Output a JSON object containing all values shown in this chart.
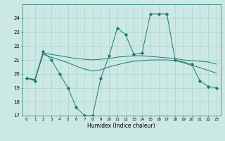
{
  "xlabel": "Humidex (Indice chaleur)",
  "x": [
    0,
    1,
    2,
    3,
    4,
    5,
    6,
    7,
    8,
    9,
    10,
    11,
    12,
    13,
    14,
    15,
    16,
    17,
    18,
    19,
    20,
    21,
    22,
    23
  ],
  "series1": [
    19.7,
    19.5,
    21.6,
    21.0,
    20.0,
    19.0,
    17.6,
    17.0,
    17.0,
    19.7,
    21.3,
    23.3,
    22.8,
    21.4,
    21.5,
    24.3,
    24.3,
    24.3,
    21.0,
    null,
    20.7,
    19.5,
    19.1,
    19.0
  ],
  "series3": [
    19.7,
    19.6,
    21.5,
    21.4,
    21.3,
    21.2,
    21.1,
    21.05,
    21.0,
    21.05,
    21.1,
    21.2,
    21.25,
    21.3,
    21.3,
    21.25,
    21.2,
    21.15,
    21.1,
    21.0,
    20.95,
    20.9,
    20.85,
    20.7
  ],
  "series4": [
    19.7,
    19.55,
    21.4,
    21.2,
    21.0,
    20.8,
    20.55,
    20.35,
    20.2,
    20.3,
    20.5,
    20.65,
    20.8,
    20.9,
    20.95,
    21.0,
    21.0,
    21.0,
    20.95,
    20.8,
    20.6,
    20.45,
    20.25,
    20.05
  ],
  "line_color": "#1a7a6e",
  "bg_color": "#cce8e4",
  "grid_color": "#aad4ce",
  "ylim": [
    17,
    25
  ],
  "yticks": [
    17,
    18,
    19,
    20,
    21,
    22,
    23,
    24
  ],
  "xlim": [
    -0.5,
    23.5
  ]
}
